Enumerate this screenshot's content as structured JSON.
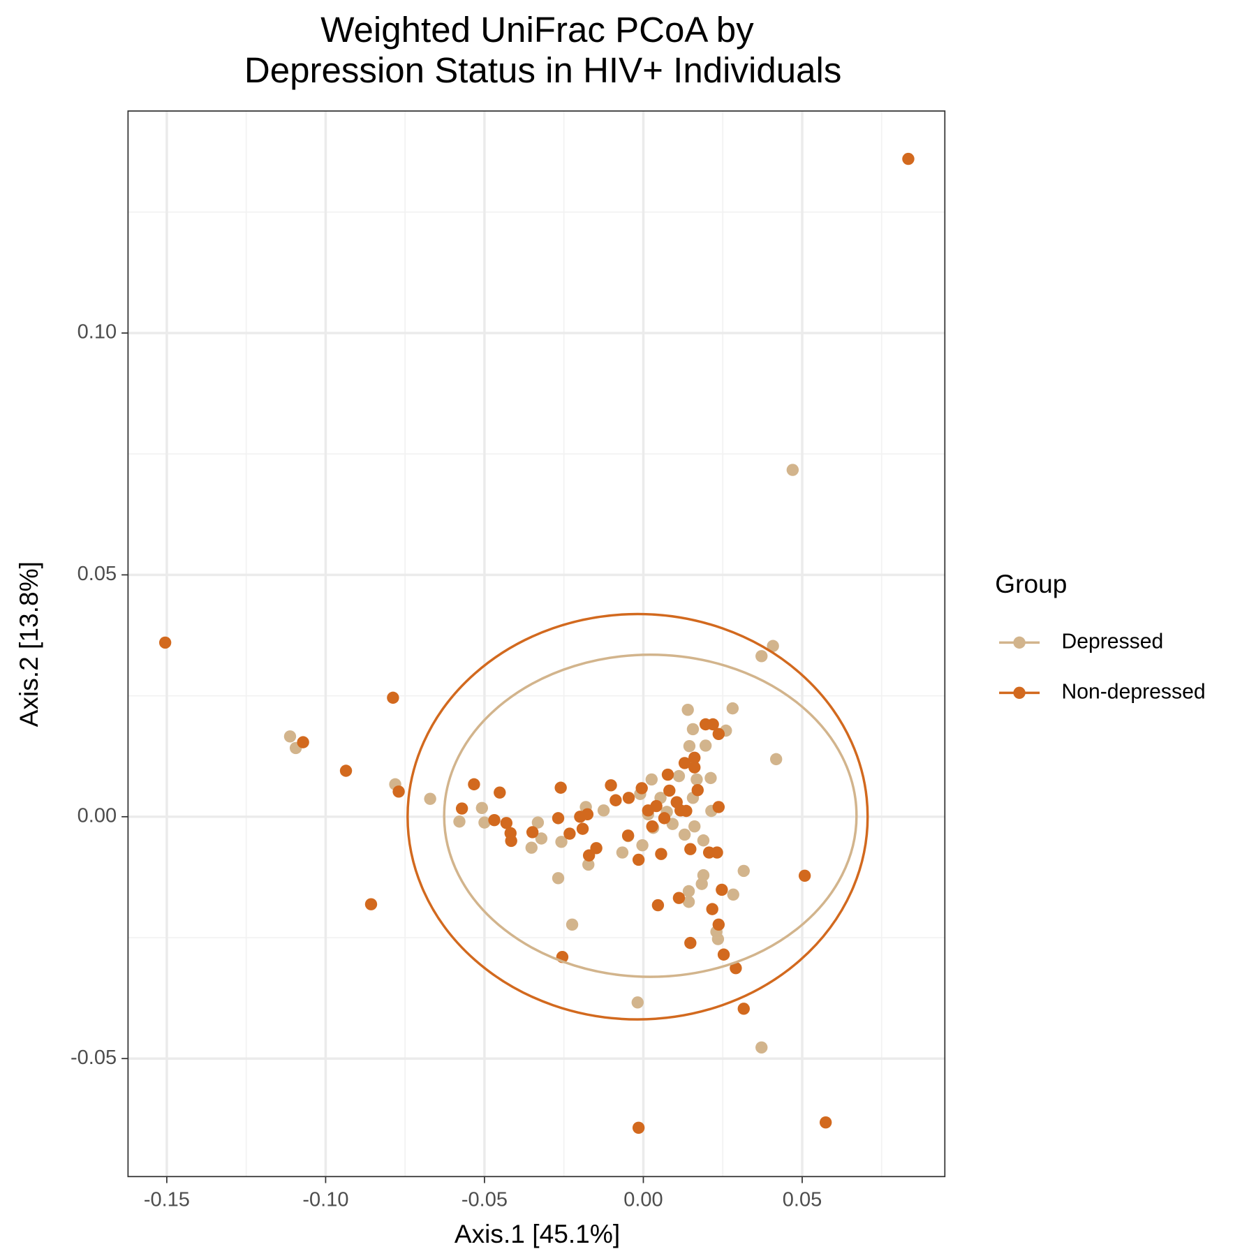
{
  "chart_data": {
    "type": "scatter",
    "title": [
      "Weighted UniFrac PCoA by",
      "Depression Status in HIV+ Individuals"
    ],
    "x_label": "Axis.1   [45.1%]",
    "y_label": "Axis.2   [13.8%]",
    "legend_title": "Group",
    "legend_position": "right",
    "grid": true,
    "xlim": [
      -0.1622,
      0.0949
    ],
    "ylim": [
      -0.0744,
      0.1459
    ],
    "xticks": [
      -0.15,
      {
        "value": -0.1,
        "label": "-0.10"
      },
      -0.05,
      {
        "value": 0,
        "label": "0.00"
      },
      0.05
    ],
    "yticks": [
      -0.05,
      {
        "value": 0,
        "label": "0.00"
      },
      0.05,
      {
        "value": 0.1,
        "label": "0.10"
      }
    ],
    "xminor": [
      -0.125,
      -0.075,
      -0.025,
      0.025,
      0.075
    ],
    "yminor": [
      -0.025,
      0.025,
      0.075,
      0.125
    ],
    "series": [
      {
        "name": "Depressed",
        "color": "#d2b48c",
        "ellipse": {
          "cx": 0.0022,
          "cy": 0.0002,
          "rx": 0.0649,
          "ry": 0.0333
        },
        "x": [
          0.047,
          0.0408,
          0.0372,
          0.0418,
          0.0281,
          0.014,
          0.026,
          0.0156,
          0.0145,
          0.0196,
          -0.1112,
          -0.1094,
          -0.0781,
          -0.0671,
          -0.0508,
          -0.0579,
          -0.05,
          -0.0332,
          -0.0352,
          -0.0321,
          -0.0258,
          -0.0268,
          -0.0224,
          -0.0181,
          -0.0125,
          -0.0173,
          -0.0066,
          -0.0048,
          0.0026,
          -0.0003,
          0.0031,
          0.0092,
          0.0112,
          0.0168,
          0.0212,
          0.0214,
          0.013,
          0.0161,
          0.0189,
          0.0189,
          0.0143,
          0.0143,
          0.0184,
          0.0283,
          0.0316,
          0.023,
          0.0235,
          -0.0018,
          0.0372,
          0.0054,
          0.0074,
          0.0015,
          0.0156,
          -0.001
        ],
        "values": [
          0.0717,
          0.0353,
          0.0332,
          0.0119,
          0.0224,
          0.0221,
          0.0178,
          0.0181,
          0.0146,
          0.0147,
          0.0166,
          0.0142,
          0.0067,
          0.0037,
          0.0018,
          -0.001,
          -0.0012,
          -0.0012,
          -0.0064,
          -0.0045,
          -0.0052,
          -0.0127,
          -0.0223,
          0.002,
          0.0013,
          -0.0099,
          -0.0074,
          -0.004,
          0.0077,
          -0.0059,
          -0.0023,
          -0.0015,
          0.0084,
          0.0077,
          0.008,
          0.0012,
          -0.0037,
          -0.002,
          -0.0049,
          -0.0121,
          -0.0154,
          -0.0176,
          -0.0139,
          -0.0161,
          -0.0112,
          -0.0238,
          -0.0253,
          -0.0384,
          -0.0477,
          0.0039,
          0.001,
          0.0005,
          0.0039,
          0.0047
        ]
      },
      {
        "name": "Non-depressed",
        "color": "#d2691e",
        "ellipse": {
          "cx": -0.0018,
          "cy": 0.0,
          "rx": 0.0724,
          "ry": 0.0419
        },
        "x": [
          0.0834,
          -0.1505,
          -0.0788,
          -0.1071,
          -0.0936,
          -0.077,
          -0.0857,
          -0.0533,
          -0.0571,
          -0.0452,
          -0.0469,
          -0.0431,
          -0.0418,
          -0.0416,
          -0.0349,
          -0.026,
          -0.0268,
          -0.0232,
          -0.0199,
          -0.0191,
          -0.0176,
          -0.0148,
          -0.0171,
          -0.0102,
          -0.0087,
          -0.0048,
          -0.0015,
          -0.0046,
          -0.0005,
          0.0028,
          0.0056,
          0.0077,
          0.0082,
          0.0105,
          0.0135,
          0.013,
          0.0161,
          0.0196,
          0.0219,
          0.0237,
          0.0237,
          0.0161,
          0.0171,
          0.0207,
          0.0232,
          0.0148,
          0.0112,
          0.0046,
          0.0217,
          0.0247,
          0.0237,
          0.0148,
          0.0253,
          0.0291,
          0.0316,
          -0.0255,
          0.0508,
          -0.0015,
          0.0574,
          0.0041,
          0.0015,
          0.0066,
          0.0117
        ],
        "values": [
          0.136,
          0.036,
          0.0246,
          0.0154,
          0.0095,
          0.0052,
          -0.0181,
          0.0067,
          0.0017,
          0.005,
          -0.0007,
          -0.0013,
          -0.0034,
          -0.005,
          -0.0032,
          0.006,
          -0.0003,
          -0.0035,
          0.0,
          -0.0025,
          0.0005,
          -0.0065,
          -0.008,
          0.0065,
          0.0034,
          -0.0039,
          -0.0089,
          0.0039,
          0.0059,
          -0.002,
          -0.0077,
          0.0087,
          0.0054,
          0.003,
          0.0012,
          0.0111,
          0.0122,
          0.0191,
          0.0191,
          0.0171,
          0.002,
          0.0102,
          0.0055,
          -0.0074,
          -0.0074,
          -0.0067,
          -0.0168,
          -0.0183,
          -0.0191,
          -0.0151,
          -0.0223,
          -0.0261,
          -0.0285,
          -0.0313,
          -0.0397,
          -0.029,
          -0.0122,
          -0.0643,
          -0.0632,
          0.0022,
          0.0013,
          -0.0003,
          0.0013
        ]
      }
    ]
  }
}
